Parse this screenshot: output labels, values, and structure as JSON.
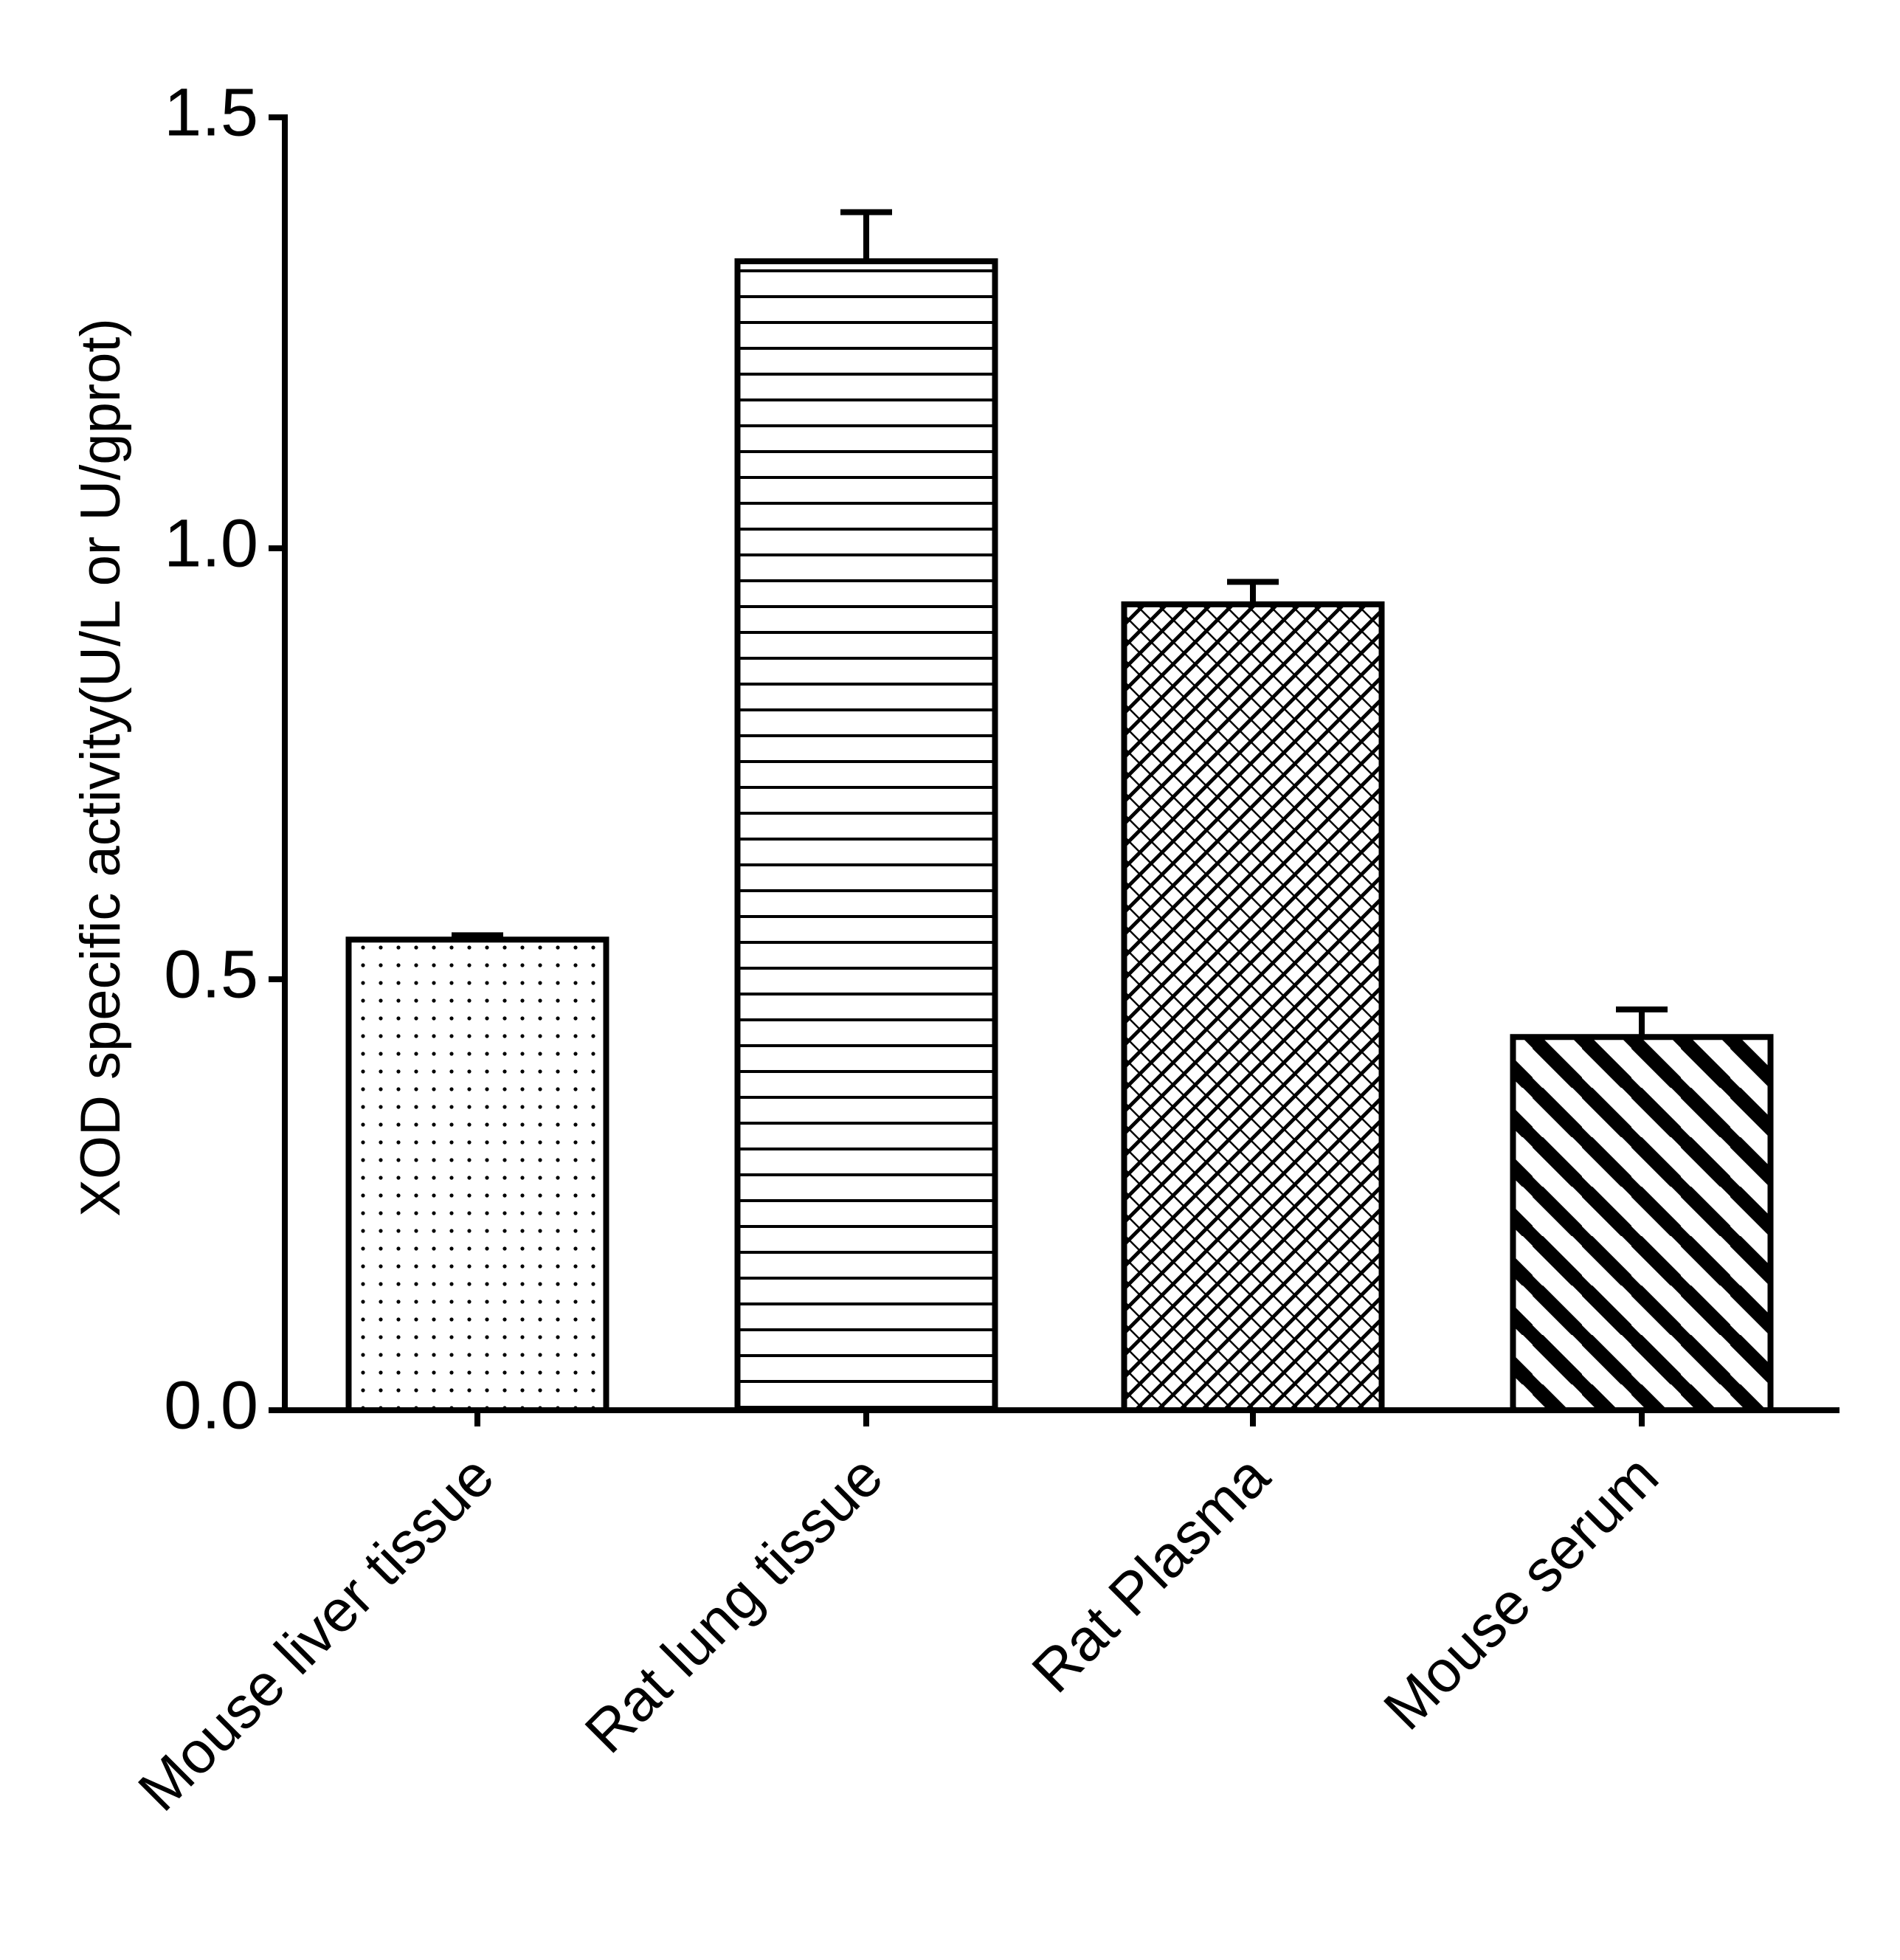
{
  "chart_data": {
    "type": "bar",
    "y_label": "XOD specific activity(U/L or U/gprot)",
    "categories": [
      "Mouse liver tissue",
      "Rat lung tissue",
      "Rat Plasma",
      "Mouse serum"
    ],
    "values": [
      0.546,
      1.333,
      0.935,
      0.433
    ],
    "errors": [
      0.005,
      0.057,
      0.026,
      0.032
    ],
    "color": "#000000",
    "ylim": [
      0,
      1.5
    ],
    "yticks": [
      {
        "value": 0,
        "label": "0.0"
      },
      {
        "value": 0.5,
        "label": "0.5"
      },
      {
        "value": 1,
        "label": "1.0"
      },
      {
        "value": 1.5,
        "label": "1.5"
      }
    ],
    "grid": false
  }
}
